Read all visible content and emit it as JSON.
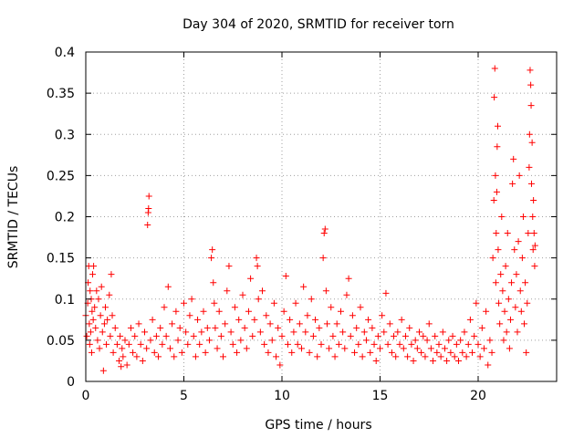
{
  "chart_data": {
    "type": "scatter",
    "title": "Day 304 of 2020, SRMTID for receiver torn",
    "xlabel": "GPS time / hours",
    "ylabel": "SRMTID / TECUs",
    "xlim": [
      0,
      24
    ],
    "ylim": [
      0,
      0.4
    ],
    "xticks": [
      0,
      5,
      10,
      15,
      20
    ],
    "yticks": [
      0,
      0.05,
      0.1,
      0.15,
      0.2,
      0.25,
      0.3,
      0.35,
      0.4
    ],
    "xtick_labels": [
      "0",
      "5",
      "10",
      "15",
      "20"
    ],
    "ytick_labels": [
      "0",
      "0.05",
      "0.1",
      "0.15",
      "0.2",
      "0.25",
      "0.3",
      "0.35",
      "0.4"
    ],
    "grid": true,
    "marker": "+",
    "color": "#ff0000",
    "series": [
      {
        "name": "SRMTID",
        "points": [
          [
            0.0,
            0.08
          ],
          [
            0.05,
            0.055
          ],
          [
            0.1,
            0.095
          ],
          [
            0.12,
            0.12
          ],
          [
            0.15,
            0.14
          ],
          [
            0.18,
            0.07
          ],
          [
            0.2,
            0.045
          ],
          [
            0.22,
            0.11
          ],
          [
            0.25,
            0.06
          ],
          [
            0.28,
            0.1
          ],
          [
            0.3,
            0.035
          ],
          [
            0.32,
            0.085
          ],
          [
            0.35,
            0.13
          ],
          [
            0.38,
            0.075
          ],
          [
            0.4,
            0.14
          ],
          [
            0.45,
            0.09
          ],
          [
            0.5,
            0.065
          ],
          [
            0.55,
            0.11
          ],
          [
            0.6,
            0.05
          ],
          [
            0.65,
            0.1
          ],
          [
            0.7,
            0.04
          ],
          [
            0.75,
            0.08
          ],
          [
            0.8,
            0.115
          ],
          [
            0.85,
            0.06
          ],
          [
            0.9,
            0.013
          ],
          [
            0.95,
            0.07
          ],
          [
            1.0,
            0.09
          ],
          [
            1.05,
            0.045
          ],
          [
            1.1,
            0.075
          ],
          [
            1.2,
            0.105
          ],
          [
            1.25,
            0.055
          ],
          [
            1.3,
            0.13
          ],
          [
            1.35,
            0.08
          ],
          [
            1.4,
            0.035
          ],
          [
            1.5,
            0.065
          ],
          [
            1.6,
            0.045
          ],
          [
            1.7,
            0.025
          ],
          [
            1.75,
            0.055
          ],
          [
            1.8,
            0.018
          ],
          [
            1.85,
            0.04
          ],
          [
            1.9,
            0.03
          ],
          [
            2.0,
            0.05
          ],
          [
            2.1,
            0.02
          ],
          [
            2.2,
            0.045
          ],
          [
            2.3,
            0.065
          ],
          [
            2.4,
            0.035
          ],
          [
            2.5,
            0.055
          ],
          [
            2.6,
            0.03
          ],
          [
            2.7,
            0.07
          ],
          [
            2.8,
            0.045
          ],
          [
            2.9,
            0.025
          ],
          [
            3.0,
            0.06
          ],
          [
            3.1,
            0.04
          ],
          [
            3.15,
            0.19
          ],
          [
            3.18,
            0.205
          ],
          [
            3.2,
            0.21
          ],
          [
            3.22,
            0.225
          ],
          [
            3.3,
            0.05
          ],
          [
            3.4,
            0.075
          ],
          [
            3.5,
            0.035
          ],
          [
            3.6,
            0.055
          ],
          [
            3.7,
            0.03
          ],
          [
            3.8,
            0.065
          ],
          [
            3.9,
            0.045
          ],
          [
            4.0,
            0.09
          ],
          [
            4.1,
            0.055
          ],
          [
            4.2,
            0.115
          ],
          [
            4.3,
            0.04
          ],
          [
            4.4,
            0.07
          ],
          [
            4.5,
            0.03
          ],
          [
            4.6,
            0.085
          ],
          [
            4.7,
            0.05
          ],
          [
            4.8,
            0.065
          ],
          [
            4.9,
            0.035
          ],
          [
            5.0,
            0.095
          ],
          [
            5.1,
            0.06
          ],
          [
            5.2,
            0.045
          ],
          [
            5.3,
            0.08
          ],
          [
            5.4,
            0.1
          ],
          [
            5.5,
            0.055
          ],
          [
            5.6,
            0.03
          ],
          [
            5.7,
            0.075
          ],
          [
            5.8,
            0.045
          ],
          [
            5.9,
            0.06
          ],
          [
            6.0,
            0.085
          ],
          [
            6.1,
            0.035
          ],
          [
            6.2,
            0.065
          ],
          [
            6.3,
            0.05
          ],
          [
            6.4,
            0.15
          ],
          [
            6.45,
            0.16
          ],
          [
            6.5,
            0.12
          ],
          [
            6.55,
            0.095
          ],
          [
            6.6,
            0.065
          ],
          [
            6.7,
            0.04
          ],
          [
            6.8,
            0.085
          ],
          [
            6.9,
            0.055
          ],
          [
            7.0,
            0.03
          ],
          [
            7.1,
            0.07
          ],
          [
            7.2,
            0.11
          ],
          [
            7.3,
            0.14
          ],
          [
            7.4,
            0.06
          ],
          [
            7.5,
            0.045
          ],
          [
            7.6,
            0.09
          ],
          [
            7.7,
            0.035
          ],
          [
            7.8,
            0.075
          ],
          [
            7.9,
            0.05
          ],
          [
            8.0,
            0.105
          ],
          [
            8.1,
            0.065
          ],
          [
            8.2,
            0.04
          ],
          [
            8.3,
            0.085
          ],
          [
            8.4,
            0.125
          ],
          [
            8.5,
            0.055
          ],
          [
            8.6,
            0.075
          ],
          [
            8.7,
            0.15
          ],
          [
            8.75,
            0.14
          ],
          [
            8.8,
            0.1
          ],
          [
            8.9,
            0.06
          ],
          [
            9.0,
            0.11
          ],
          [
            9.1,
            0.045
          ],
          [
            9.2,
            0.08
          ],
          [
            9.3,
            0.035
          ],
          [
            9.4,
            0.07
          ],
          [
            9.5,
            0.05
          ],
          [
            9.6,
            0.095
          ],
          [
            9.7,
            0.03
          ],
          [
            9.8,
            0.065
          ],
          [
            9.9,
            0.02
          ],
          [
            10.0,
            0.055
          ],
          [
            10.1,
            0.085
          ],
          [
            10.2,
            0.128
          ],
          [
            10.3,
            0.045
          ],
          [
            10.4,
            0.075
          ],
          [
            10.5,
            0.035
          ],
          [
            10.6,
            0.06
          ],
          [
            10.7,
            0.095
          ],
          [
            10.8,
            0.045
          ],
          [
            10.9,
            0.07
          ],
          [
            11.0,
            0.04
          ],
          [
            11.1,
            0.115
          ],
          [
            11.2,
            0.06
          ],
          [
            11.3,
            0.08
          ],
          [
            11.4,
            0.035
          ],
          [
            11.5,
            0.1
          ],
          [
            11.6,
            0.055
          ],
          [
            11.7,
            0.075
          ],
          [
            11.8,
            0.03
          ],
          [
            11.9,
            0.065
          ],
          [
            12.0,
            0.045
          ],
          [
            12.1,
            0.15
          ],
          [
            12.15,
            0.18
          ],
          [
            12.2,
            0.185
          ],
          [
            12.25,
            0.11
          ],
          [
            12.3,
            0.07
          ],
          [
            12.4,
            0.04
          ],
          [
            12.5,
            0.09
          ],
          [
            12.6,
            0.055
          ],
          [
            12.7,
            0.03
          ],
          [
            12.8,
            0.07
          ],
          [
            12.9,
            0.045
          ],
          [
            13.0,
            0.085
          ],
          [
            13.1,
            0.06
          ],
          [
            13.2,
            0.04
          ],
          [
            13.3,
            0.105
          ],
          [
            13.4,
            0.125
          ],
          [
            13.5,
            0.055
          ],
          [
            13.6,
            0.08
          ],
          [
            13.7,
            0.035
          ],
          [
            13.8,
            0.065
          ],
          [
            13.9,
            0.045
          ],
          [
            14.0,
            0.09
          ],
          [
            14.1,
            0.03
          ],
          [
            14.2,
            0.06
          ],
          [
            14.3,
            0.05
          ],
          [
            14.4,
            0.075
          ],
          [
            14.5,
            0.035
          ],
          [
            14.6,
            0.065
          ],
          [
            14.7,
            0.045
          ],
          [
            14.8,
            0.025
          ],
          [
            14.9,
            0.055
          ],
          [
            15.0,
            0.04
          ],
          [
            15.1,
            0.08
          ],
          [
            15.2,
            0.06
          ],
          [
            15.3,
            0.107
          ],
          [
            15.4,
            0.045
          ],
          [
            15.5,
            0.07
          ],
          [
            15.6,
            0.035
          ],
          [
            15.7,
            0.055
          ],
          [
            15.8,
            0.03
          ],
          [
            15.9,
            0.06
          ],
          [
            16.0,
            0.045
          ],
          [
            16.1,
            0.075
          ],
          [
            16.2,
            0.04
          ],
          [
            16.3,
            0.055
          ],
          [
            16.4,
            0.03
          ],
          [
            16.5,
            0.065
          ],
          [
            16.6,
            0.045
          ],
          [
            16.7,
            0.025
          ],
          [
            16.8,
            0.05
          ],
          [
            16.9,
            0.04
          ],
          [
            17.0,
            0.06
          ],
          [
            17.1,
            0.035
          ],
          [
            17.2,
            0.055
          ],
          [
            17.3,
            0.03
          ],
          [
            17.4,
            0.05
          ],
          [
            17.5,
            0.07
          ],
          [
            17.6,
            0.04
          ],
          [
            17.7,
            0.025
          ],
          [
            17.8,
            0.055
          ],
          [
            17.9,
            0.035
          ],
          [
            18.0,
            0.045
          ],
          [
            18.1,
            0.03
          ],
          [
            18.2,
            0.06
          ],
          [
            18.3,
            0.04
          ],
          [
            18.4,
            0.025
          ],
          [
            18.5,
            0.05
          ],
          [
            18.6,
            0.035
          ],
          [
            18.7,
            0.055
          ],
          [
            18.8,
            0.03
          ],
          [
            18.9,
            0.045
          ],
          [
            19.0,
            0.025
          ],
          [
            19.1,
            0.05
          ],
          [
            19.2,
            0.035
          ],
          [
            19.3,
            0.06
          ],
          [
            19.4,
            0.03
          ],
          [
            19.5,
            0.045
          ],
          [
            19.6,
            0.075
          ],
          [
            19.7,
            0.035
          ],
          [
            19.8,
            0.055
          ],
          [
            19.9,
            0.095
          ],
          [
            20.0,
            0.045
          ],
          [
            20.1,
            0.03
          ],
          [
            20.2,
            0.065
          ],
          [
            20.3,
            0.04
          ],
          [
            20.4,
            0.085
          ],
          [
            20.5,
            0.02
          ],
          [
            20.6,
            0.05
          ],
          [
            20.7,
            0.035
          ],
          [
            20.75,
            0.15
          ],
          [
            20.8,
            0.22
          ],
          [
            20.82,
            0.345
          ],
          [
            20.85,
            0.38
          ],
          [
            20.88,
            0.25
          ],
          [
            20.9,
            0.12
          ],
          [
            20.92,
            0.18
          ],
          [
            20.95,
            0.23
          ],
          [
            20.97,
            0.285
          ],
          [
            21.0,
            0.31
          ],
          [
            21.02,
            0.16
          ],
          [
            21.05,
            0.095
          ],
          [
            21.1,
            0.07
          ],
          [
            21.15,
            0.13
          ],
          [
            21.2,
            0.2
          ],
          [
            21.25,
            0.11
          ],
          [
            21.3,
            0.05
          ],
          [
            21.35,
            0.085
          ],
          [
            21.4,
            0.14
          ],
          [
            21.45,
            0.06
          ],
          [
            21.5,
            0.18
          ],
          [
            21.55,
            0.1
          ],
          [
            21.6,
            0.04
          ],
          [
            21.65,
            0.075
          ],
          [
            21.7,
            0.12
          ],
          [
            21.75,
            0.24
          ],
          [
            21.8,
            0.27
          ],
          [
            21.85,
            0.16
          ],
          [
            21.9,
            0.09
          ],
          [
            21.95,
            0.13
          ],
          [
            22.0,
            0.06
          ],
          [
            22.05,
            0.17
          ],
          [
            22.1,
            0.25
          ],
          [
            22.15,
            0.11
          ],
          [
            22.2,
            0.085
          ],
          [
            22.25,
            0.15
          ],
          [
            22.3,
            0.2
          ],
          [
            22.35,
            0.07
          ],
          [
            22.4,
            0.12
          ],
          [
            22.45,
            0.035
          ],
          [
            22.5,
            0.095
          ],
          [
            22.55,
            0.18
          ],
          [
            22.6,
            0.26
          ],
          [
            22.62,
            0.3
          ],
          [
            22.65,
            0.378
          ],
          [
            22.68,
            0.36
          ],
          [
            22.7,
            0.335
          ],
          [
            22.72,
            0.24
          ],
          [
            22.75,
            0.29
          ],
          [
            22.78,
            0.2
          ],
          [
            22.8,
            0.16
          ],
          [
            22.82,
            0.22
          ],
          [
            22.85,
            0.18
          ],
          [
            22.88,
            0.14
          ],
          [
            22.9,
            0.165
          ]
        ]
      }
    ]
  }
}
